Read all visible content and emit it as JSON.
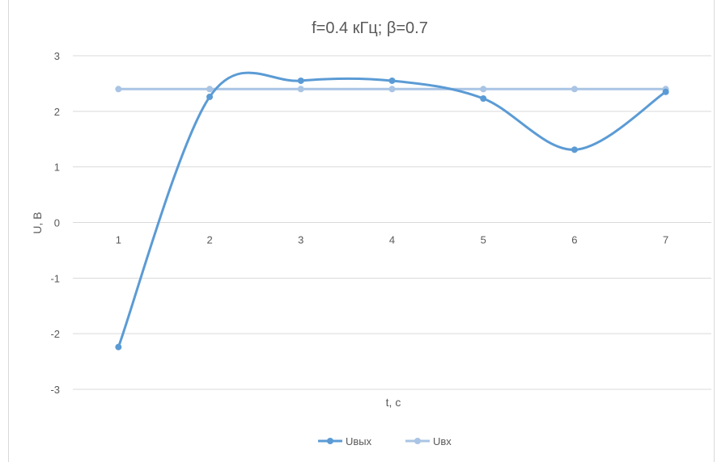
{
  "colors": {
    "series_out": "#5b9bd5",
    "series_in": "#a9c4e4",
    "grid": "#d9d9d9",
    "text": "#595959"
  },
  "chart_data": {
    "type": "line",
    "title": "f=0.4 кГц; β=0.7",
    "xlabel": "t, с",
    "ylabel": "U, В",
    "categories": [
      "1",
      "2",
      "3",
      "4",
      "5",
      "6",
      "7"
    ],
    "ylim": [
      -3,
      3
    ],
    "yticks": [
      3,
      2,
      1,
      0,
      -1,
      -2,
      -3
    ],
    "grid": true,
    "smooth": true,
    "legend_position": "bottom",
    "series": [
      {
        "name": "Uвых",
        "values": [
          -2.24,
          2.26,
          2.55,
          2.55,
          2.23,
          1.31,
          2.35
        ]
      },
      {
        "name": "Uвх",
        "values": [
          2.4,
          2.4,
          2.4,
          2.4,
          2.4,
          2.4,
          2.4
        ]
      }
    ]
  }
}
